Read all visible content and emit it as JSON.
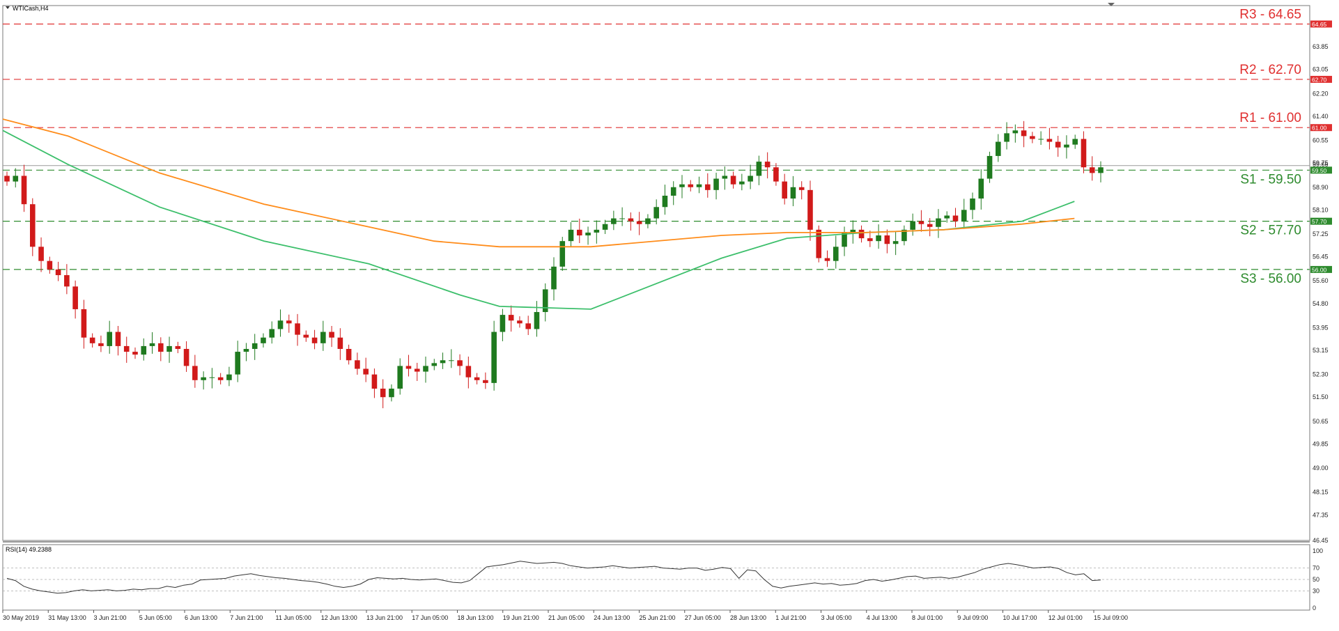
{
  "window": {
    "symbol_label": "WTICash,H4"
  },
  "indicator": {
    "label": "RSI(14) 49.2388"
  },
  "colors": {
    "bull": "#1f7a1f",
    "bear": "#d11a1a",
    "resistance_line": "#e03030",
    "support_line": "#2e8b2e",
    "ma_fast": "#3cbf6b",
    "ma_slow": "#ff8c1a",
    "rsi_line": "#333333",
    "grid": "#cccccc"
  },
  "chart_data": [
    {
      "type": "candlestick",
      "title": "WTICash,H4",
      "ylim": [
        46.45,
        65.3
      ],
      "y_ticks": [
        "64.65",
        "63.85",
        "63.05",
        "62.20",
        "61.40",
        "60.55",
        "59.75",
        "58.90",
        "58.10",
        "57.25",
        "56.45",
        "55.60",
        "54.80",
        "53.95",
        "53.15",
        "52.30",
        "51.50",
        "50.65",
        "49.85",
        "49.00",
        "48.15",
        "47.35",
        "46.45"
      ],
      "x_ticks": [
        "30 May 2019",
        "31 May 13:00",
        "3 Jun 21:00",
        "5 Jun 05:00",
        "6 Jun 13:00",
        "7 Jun 21:00",
        "11 Jun 05:00",
        "12 Jun 13:00",
        "13 Jun 21:00",
        "17 Jun 05:00",
        "18 Jun 13:00",
        "19 Jun 21:00",
        "21 Jun 05:00",
        "24 Jun 13:00",
        "25 Jun 21:00",
        "27 Jun 05:00",
        "28 Jun 13:00",
        "1 Jul 21:00",
        "3 Jul 05:00",
        "4 Jul 13:00",
        "8 Jul 01:00",
        "9 Jul 09:00",
        "10 Jul 17:00",
        "12 Jul 01:00",
        "15 Jul 09:00"
      ],
      "current_price_label": "59.66",
      "levels": [
        {
          "name": "R3",
          "label": "R3 - 64.65",
          "tag": "64.65",
          "value": 64.65,
          "kind": "resistance"
        },
        {
          "name": "R2",
          "label": "R2 - 62.70",
          "tag": "62.70",
          "value": 62.7,
          "kind": "resistance"
        },
        {
          "name": "R1",
          "label": "R1  - 61.00",
          "tag": "61.00",
          "value": 61.0,
          "kind": "resistance"
        },
        {
          "name": "S1",
          "label": "S1 - 59.50",
          "tag": "59.50",
          "value": 59.5,
          "kind": "support"
        },
        {
          "name": "S2",
          "label": "S2 - 57.70",
          "tag": "57.70",
          "value": 57.7,
          "kind": "support"
        },
        {
          "name": "S3",
          "label": "S3 - 56.00",
          "tag": "56.00",
          "value": 56.0,
          "kind": "support"
        }
      ],
      "price_path": [
        59.1,
        59.3,
        58.3,
        56.8,
        56.3,
        56.0,
        55.8,
        55.4,
        54.6,
        53.6,
        53.4,
        53.3,
        53.8,
        53.3,
        53.1,
        53.0,
        53.3,
        53.4,
        53.1,
        53.3,
        53.2,
        52.6,
        52.1,
        52.2,
        52.2,
        52.1,
        52.3,
        53.1,
        53.2,
        53.4,
        53.6,
        53.9,
        54.2,
        54.1,
        53.7,
        53.6,
        53.4,
        53.8,
        53.6,
        53.2,
        52.8,
        52.5,
        52.3,
        51.8,
        51.5,
        51.8,
        52.6,
        52.5,
        52.4,
        52.6,
        52.7,
        52.8,
        52.8,
        52.6,
        52.2,
        52.1,
        52.0,
        53.8,
        54.4,
        54.2,
        54.1,
        53.9,
        54.5,
        55.3,
        56.1,
        57.0,
        57.4,
        57.2,
        57.3,
        57.4,
        57.6,
        57.8,
        57.8,
        57.7,
        57.6,
        57.8,
        58.2,
        58.6,
        58.9,
        59.0,
        58.9,
        59.0,
        58.8,
        59.2,
        59.3,
        59.0,
        59.1,
        59.3,
        59.8,
        59.6,
        59.1,
        58.5,
        58.9,
        58.8,
        57.4,
        56.4,
        56.3,
        56.8,
        57.3,
        57.4,
        57.1,
        57.0,
        57.2,
        56.9,
        57.0,
        57.4,
        57.7,
        57.6,
        57.5,
        57.8,
        57.9,
        57.7,
        58.1,
        58.5,
        59.2,
        60.0,
        60.5,
        60.8,
        60.9,
        60.7,
        60.6,
        60.6,
        60.5,
        60.3,
        60.4,
        60.6,
        59.6,
        59.4,
        59.6
      ],
      "series": [
        {
          "name": "Moving Average (fast)",
          "x_frac": [
            0.0,
            0.05,
            0.12,
            0.2,
            0.28,
            0.35,
            0.38,
            0.45,
            0.55,
            0.6,
            0.66,
            0.72,
            0.78,
            0.82
          ],
          "values": [
            60.9,
            59.7,
            58.2,
            57.0,
            56.2,
            55.1,
            54.7,
            54.6,
            56.4,
            57.1,
            57.3,
            57.4,
            57.7,
            58.4
          ]
        },
        {
          "name": "Moving Average (slow)",
          "x_frac": [
            0.0,
            0.05,
            0.12,
            0.2,
            0.28,
            0.33,
            0.38,
            0.45,
            0.55,
            0.6,
            0.66,
            0.72,
            0.78,
            0.82
          ],
          "values": [
            61.3,
            60.7,
            59.4,
            58.3,
            57.5,
            57.0,
            56.8,
            56.8,
            57.2,
            57.3,
            57.3,
            57.4,
            57.6,
            57.8
          ]
        }
      ]
    },
    {
      "type": "line",
      "title": "RSI(14) 49.2388",
      "ylim": [
        0,
        100
      ],
      "y_ticks": [
        "100",
        "70",
        "50",
        "30",
        "0"
      ],
      "reference_levels": [
        70,
        50,
        30
      ],
      "series": [
        {
          "name": "RSI(14)",
          "values": [
            52,
            48,
            38,
            33,
            30,
            28,
            26,
            27,
            30,
            32,
            30,
            31,
            32,
            30,
            31,
            33,
            32,
            34,
            34,
            38,
            36,
            40,
            42,
            49,
            50,
            51,
            52,
            56,
            58,
            60,
            57,
            55,
            53,
            52,
            50,
            48,
            47,
            45,
            42,
            38,
            36,
            38,
            42,
            50,
            53,
            52,
            51,
            52,
            50,
            49,
            50,
            51,
            48,
            45,
            44,
            48,
            60,
            72,
            74,
            76,
            79,
            82,
            80,
            78,
            79,
            80,
            78,
            74,
            72,
            70,
            71,
            72,
            74,
            72,
            70,
            71,
            72,
            73,
            70,
            69,
            68,
            70,
            70,
            66,
            68,
            71,
            69,
            52,
            67,
            65,
            50,
            38,
            35,
            38,
            40,
            42,
            44,
            42,
            43,
            40,
            41,
            43,
            48,
            50,
            47,
            49,
            52,
            55,
            56,
            52,
            53,
            54,
            52,
            54,
            58,
            62,
            68,
            72,
            76,
            78,
            76,
            73,
            70,
            71,
            72,
            69,
            62,
            58,
            60,
            48,
            49
          ]
        }
      ]
    }
  ]
}
